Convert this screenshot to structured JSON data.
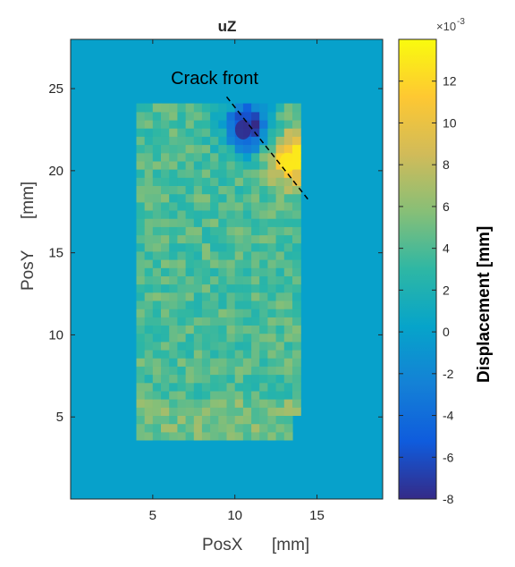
{
  "chart_data": {
    "type": "heatmap",
    "title": "uZ",
    "xlabel": "PosX",
    "xunit": "[mm]",
    "ylabel": "PosY",
    "yunit": "[mm]",
    "xlim": [
      0,
      19
    ],
    "ylim": [
      0,
      28
    ],
    "xticks": [
      5,
      10,
      15
    ],
    "yticks": [
      5,
      10,
      15,
      20,
      25
    ],
    "region": {
      "description_values": "displacement field measured over specimen area",
      "x_range": [
        4,
        14
      ],
      "y_range": [
        3.6,
        23.9
      ],
      "typical_value": 4,
      "background_value": 0
    },
    "hotspots": [
      {
        "x": 10.5,
        "y": 22.5,
        "value": -8
      },
      {
        "x": 13.2,
        "y": 20.5,
        "value": 13
      }
    ],
    "annotation": {
      "text": "Crack front",
      "line_from": [
        9.5,
        24.5
      ],
      "line_to": [
        14.5,
        18.2
      ]
    },
    "colorbar": {
      "label": "Displacement [mm]",
      "exponent_text": "×10",
      "exponent_power": "-3",
      "clim": [
        -8,
        14
      ],
      "ticks": [
        -8,
        -6,
        -4,
        -2,
        0,
        2,
        4,
        6,
        8,
        10,
        12
      ],
      "colors": [
        "#352a87",
        "#0f5cdd",
        "#1481d6",
        "#06a4ca",
        "#2eb7a4",
        "#87bf77",
        "#d1bb59",
        "#fec832",
        "#f9fb0e"
      ]
    }
  }
}
